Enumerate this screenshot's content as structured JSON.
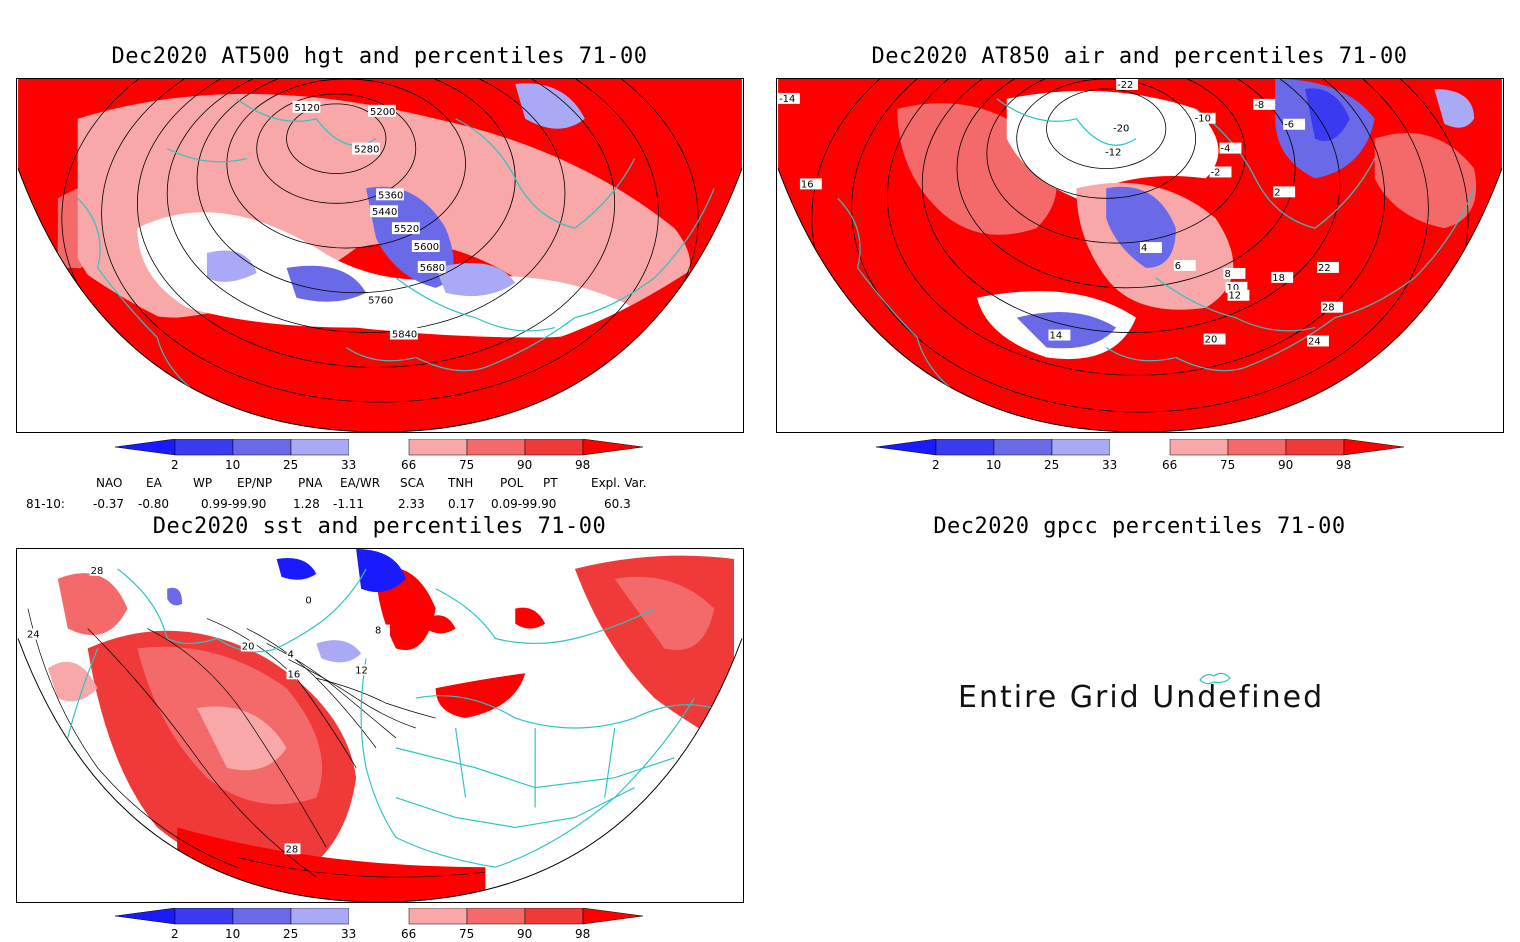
{
  "panels": [
    {
      "id": "hgt",
      "title": "Dec2020 AT500 hgt and percentiles 71-00",
      "contour_labels": [
        "5120",
        "5200",
        "5280",
        "5360",
        "5440",
        "5520",
        "5600",
        "5680",
        "5760",
        "5840"
      ]
    },
    {
      "id": "air",
      "title": "Dec2020 AT850 air and percentiles 71-00",
      "contour_labels": [
        "-22",
        "-20",
        "-14",
        "-12",
        "-10",
        "-8",
        "-6",
        "-4",
        "-2",
        "2",
        "4",
        "6",
        "8",
        "10",
        "12",
        "14",
        "16",
        "18",
        "20",
        "22",
        "24",
        "28"
      ]
    },
    {
      "id": "sst",
      "title": "Dec2020 sst and percentiles 71-00",
      "contour_labels": [
        "28",
        "24",
        "20",
        "16",
        "12",
        "8",
        "4",
        "0",
        "28"
      ]
    },
    {
      "id": "gpcc",
      "title": "Dec2020 gpcc percentiles 71-00",
      "message": "Entire Grid Undefined"
    }
  ],
  "colorbar": {
    "ticks": [
      "2",
      "10",
      "25",
      "33",
      "66",
      "75",
      "90",
      "98"
    ],
    "colors": [
      "#1a1aff",
      "#3a3af0",
      "#6a6ae8",
      "#a9a9f5",
      "#ffffff",
      "#f8a8a8",
      "#f46a6a",
      "#f03a3a",
      "#ff0000"
    ]
  },
  "teleconnection": {
    "headers": [
      "NAO",
      "EA",
      "WP",
      "EP/NP",
      "PNA",
      "EA/WR",
      "SCA",
      "TNH",
      "POL",
      "PT",
      "Expl. Var."
    ],
    "row_label": "81-10:",
    "values": [
      "-0.37",
      "-0.80",
      "0.99-99.90",
      "1.28",
      "-1.11",
      "2.33",
      "0.17",
      "0.09-99.90",
      "60.3"
    ]
  },
  "map_colors": {
    "strong_red": "#ff0000",
    "red": "#f03a3a",
    "light_red": "#f8a8a8",
    "blue": "#6a6ae8",
    "dark_blue": "#1a1aff",
    "coast": "#2ec4c4"
  }
}
